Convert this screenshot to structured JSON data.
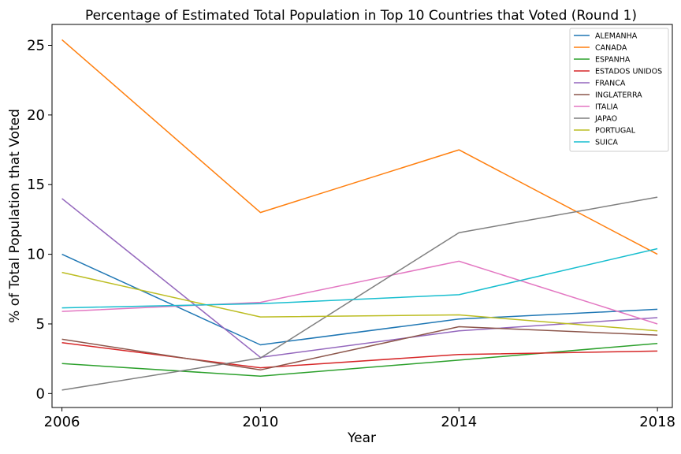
{
  "chart_data": {
    "type": "line",
    "title": "Percentage of Estimated Total Population in Top 10 Countries that Voted (Round 1)",
    "xlabel": "Year",
    "ylabel": "% of Total Population that Voted",
    "x": [
      "2006",
      "2010",
      "2014",
      "2018"
    ],
    "xlim": [
      2005.8,
      2018.3
    ],
    "ylim": [
      -1.0,
      26.5
    ],
    "yticks": [
      0,
      5,
      10,
      15,
      20,
      25
    ],
    "grid": false,
    "legend_position": "top-right",
    "series": [
      {
        "name": "ALEMANHA",
        "color": "#1f77b4",
        "values": [
          10.0,
          3.5,
          5.35,
          6.05
        ]
      },
      {
        "name": "CANADA",
        "color": "#ff7f0e",
        "values": [
          25.4,
          13.0,
          17.5,
          10.0
        ]
      },
      {
        "name": "ESPANHA",
        "color": "#2ca02c",
        "values": [
          2.15,
          1.25,
          2.4,
          3.6
        ]
      },
      {
        "name": "ESTADOS UNIDOS",
        "color": "#d62728",
        "values": [
          3.65,
          1.85,
          2.8,
          3.05
        ]
      },
      {
        "name": "FRANCA",
        "color": "#9467bd",
        "values": [
          14.0,
          2.6,
          4.5,
          5.45
        ]
      },
      {
        "name": "INGLATERRA",
        "color": "#8c564b",
        "values": [
          3.9,
          1.7,
          4.8,
          4.2
        ]
      },
      {
        "name": "ITALIA",
        "color": "#e377c2",
        "values": [
          5.9,
          6.55,
          9.5,
          5.0
        ]
      },
      {
        "name": "JAPAO",
        "color": "#7f7f7f",
        "values": [
          0.25,
          2.55,
          11.55,
          14.1
        ]
      },
      {
        "name": "PORTUGAL",
        "color": "#bcbd22",
        "values": [
          8.7,
          5.5,
          5.65,
          4.5
        ]
      },
      {
        "name": "SUICA",
        "color": "#17becf",
        "values": [
          6.15,
          6.45,
          7.1,
          10.4
        ]
      }
    ]
  }
}
